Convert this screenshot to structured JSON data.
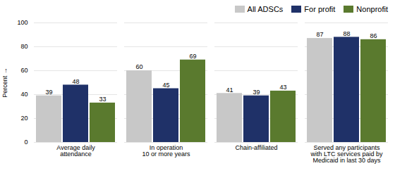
{
  "chart_data": {
    "type": "bar",
    "categories": [
      "Average daily\nattendance",
      "In operation\n10 or more years",
      "Chain-affiliated",
      "Served any participants\nwith LTC services paid by\nMedicaid in last 30 days"
    ],
    "series": [
      {
        "name": "All ADSCs",
        "color": "#c8c8c8",
        "values": [
          39,
          60,
          41,
          87
        ]
      },
      {
        "name": "For profit",
        "color": "#1f3168",
        "values": [
          48,
          45,
          39,
          88
        ]
      },
      {
        "name": "Nonprofit",
        "color": "#5a7a2e",
        "values": [
          33,
          69,
          43,
          86
        ]
      }
    ],
    "ylabel": "Percent",
    "ylim": [
      0,
      100
    ],
    "yticks": [
      0,
      20,
      40,
      60,
      80,
      100
    ],
    "grid": true,
    "legend": "top right",
    "data_labels": true
  }
}
